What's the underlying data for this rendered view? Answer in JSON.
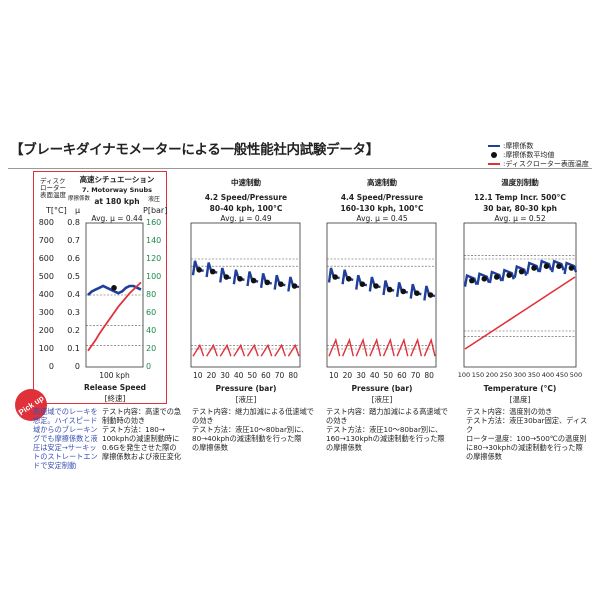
{
  "title": "【ブレーキダイナモメーターによる一般性能社内試験データ】",
  "legend": [
    {
      "label": ":摩擦係数",
      "color": "#1f3f9a",
      "kind": "line"
    },
    {
      "label": ":摩擦係数平均値",
      "color": "#111111",
      "kind": "dot"
    },
    {
      "label": ":ディスクローター表面温度",
      "color": "#e0313a",
      "kind": "line"
    }
  ],
  "axis_headers": {
    "disc_temp": "ディスク\nローター\n表面温度",
    "mu": "摩擦係数",
    "pressure": "液圧",
    "temp_unit": "T[°C]",
    "mu_unit": "μ",
    "p_unit": "P[bar]"
  },
  "left_ticks_T": [
    "800",
    "700",
    "600",
    "500",
    "400",
    "300",
    "200",
    "100",
    "0"
  ],
  "left_ticks_mu": [
    "0.8",
    "0.7",
    "0.6",
    "0.5",
    "0.4",
    "0.3",
    "0.2",
    "0.1",
    "0"
  ],
  "right_ticks_P": [
    "160",
    "140",
    "120",
    "100",
    "80",
    "60",
    "40",
    "20",
    "0"
  ],
  "pick_up": "Pick up",
  "pick_up_note": "高速域でのレーキを想定。ハイスピード域からのブレーキングでも摩擦係数と液圧は安定→サーキットのストレートエンドで安定制動",
  "panels": [
    {
      "category": "高速シチュエーション",
      "test": "7. Motorway Snubs",
      "condition": "at 180 kph",
      "avg": "Avg. μ = 0.44",
      "x_ticks": [
        "100 kph"
      ],
      "x_label": "Release Speed",
      "x_sub": "[終速]",
      "desc": "テスト内容：高速での急\n制動時の効き\nテスト方法：180→\n100kphの減速制動時に\n0.6Gを発生させた際の\n摩擦係数および液圧変化"
    },
    {
      "category": "中速制動",
      "test": "4.2 Speed/Pressure",
      "condition": "80-40 kph, 100°C",
      "avg": "Avg. μ = 0.49",
      "x_ticks": [
        "10",
        "20",
        "30",
        "40",
        "50",
        "60",
        "70",
        "80"
      ],
      "x_label": "Pressure (bar)",
      "x_sub": "[液圧]",
      "desc": "テスト内容：継力加減による低速域で\nの効き\nテスト方法：液圧10～80bar別に、\n80→40kphの減速制動を行った際\nの摩擦係数"
    },
    {
      "category": "高速制動",
      "test": "4.4 Speed/Pressure",
      "condition": "160-130 kph, 100°C",
      "avg": "Avg. μ = 0.45",
      "x_ticks": [
        "10",
        "20",
        "30",
        "40",
        "50",
        "60",
        "70",
        "80"
      ],
      "x_label": "Pressure (bar)",
      "x_sub": "[液圧]",
      "desc": "テスト内容：踏力加減による高速域で\nの効き\nテスト方法：液圧10～80bar別に、\n160→130kphの減速制動を行った際\nの摩擦係数"
    },
    {
      "category": "温度別制動",
      "test": "12.1 Temp Incr. 500°C",
      "condition": "30 bar, 80-30 kph",
      "avg": "Avg. μ = 0.52",
      "x_ticks": [
        "100",
        "150",
        "200",
        "250",
        "300",
        "350",
        "400",
        "450",
        "500"
      ],
      "x_label": "Temperature (°C)",
      "x_sub": "[温度]",
      "desc": "テスト内容：温度別の効き\nテスト方法：液圧30bar固定、ディスク\nローター温度：100→500℃の温度別\nに80→30kphの減速制動を行った際\nの摩擦係数"
    }
  ],
  "chart_data": [
    {
      "type": "line",
      "title": "7. Motorway Snubs at 180 kph",
      "xlabel": "Release Speed",
      "ylabel": "μ",
      "ylim": [
        0,
        0.8
      ],
      "series": [
        {
          "name": ":摩擦係数",
          "values": [
            0.4,
            0.42,
            0.43,
            0.44,
            0.45,
            0.44,
            0.43,
            0.42,
            0.41,
            0.42,
            0.44,
            0.45,
            0.45,
            0.44,
            0.43
          ]
        },
        {
          "name": ":摩擦係数平均値",
          "values": [
            0.44
          ]
        },
        {
          "name": ":ディスクローター表面温度",
          "unit": "°C",
          "values": [
            90,
            120,
            150,
            185,
            215,
            245,
            275,
            305,
            335,
            360,
            385,
            410,
            430,
            450,
            470
          ]
        }
      ]
    },
    {
      "type": "line",
      "title": "4.2 Speed/Pressure 80-40 kph, 100°C",
      "xlabel": "Pressure (bar)",
      "ylabel": "μ",
      "categories": [
        "10",
        "20",
        "30",
        "40",
        "50",
        "60",
        "70",
        "80"
      ],
      "ylim": [
        0,
        0.8
      ],
      "series": [
        {
          "name": ":摩擦係数平均値",
          "values": [
            0.54,
            0.53,
            0.5,
            0.49,
            0.48,
            0.47,
            0.46,
            0.45
          ]
        }
      ]
    },
    {
      "type": "line",
      "title": "4.4 Speed/Pressure 160-130 kph, 100°C",
      "xlabel": "Pressure (bar)",
      "ylabel": "μ",
      "categories": [
        "10",
        "20",
        "30",
        "40",
        "50",
        "60",
        "70",
        "80"
      ],
      "ylim": [
        0,
        0.8
      ],
      "series": [
        {
          "name": ":摩擦係数平均値",
          "values": [
            0.5,
            0.49,
            0.46,
            0.45,
            0.43,
            0.42,
            0.41,
            0.4
          ]
        }
      ]
    },
    {
      "type": "line",
      "title": "12.1 Temp Incr. 500°C 30 bar, 80-30 kph",
      "xlabel": "Temperature (°C)",
      "ylabel": "μ",
      "categories": [
        "100",
        "150",
        "200",
        "250",
        "300",
        "350",
        "400",
        "450",
        "500"
      ],
      "ylim": [
        0,
        0.8
      ],
      "series": [
        {
          "name": ":摩擦係数平均値",
          "values": [
            0.48,
            0.49,
            0.5,
            0.51,
            0.53,
            0.55,
            0.56,
            0.56,
            0.55
          ]
        },
        {
          "name": ":ディスクローター表面温度",
          "unit": "°C",
          "values": [
            100,
            150,
            200,
            250,
            300,
            350,
            400,
            450,
            500
          ]
        }
      ]
    }
  ]
}
